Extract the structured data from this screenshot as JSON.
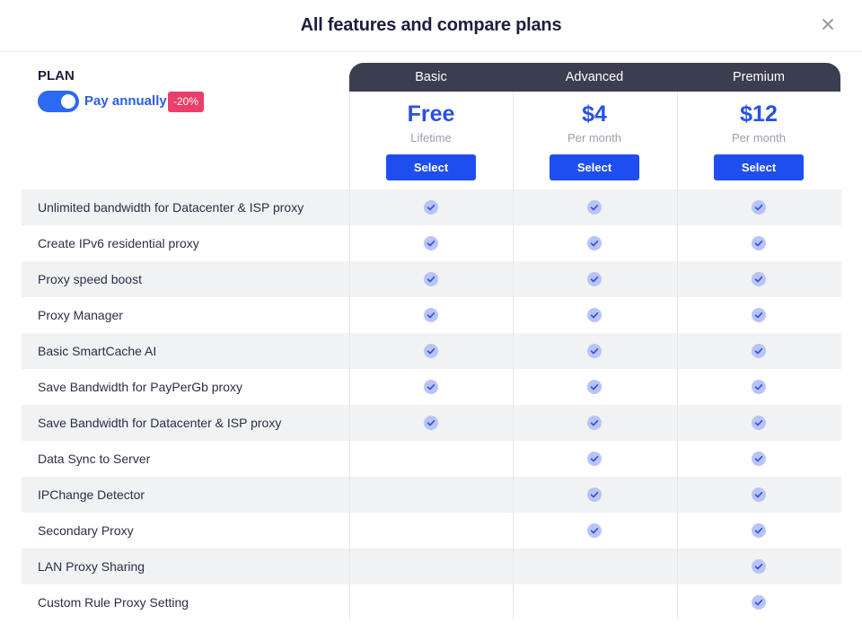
{
  "modal": {
    "title": "All features and compare plans"
  },
  "plan": {
    "label": "PLAN",
    "billing_toggle_label": "Pay annually",
    "billing_annual_on": true,
    "discount_badge": "-20%"
  },
  "plans": [
    {
      "name": "Basic",
      "price": "Free",
      "period": "Lifetime",
      "button": "Select"
    },
    {
      "name": "Advanced",
      "price": "$4",
      "period": "Per month",
      "button": "Select"
    },
    {
      "name": "Premium",
      "price": "$12",
      "period": "Per month",
      "button": "Select"
    }
  ],
  "features": [
    {
      "name": "Unlimited bandwidth for Datacenter & ISP proxy",
      "included": [
        true,
        true,
        true
      ]
    },
    {
      "name": "Create IPv6 residential proxy",
      "included": [
        true,
        true,
        true
      ]
    },
    {
      "name": "Proxy speed boost",
      "included": [
        true,
        true,
        true
      ]
    },
    {
      "name": "Proxy Manager",
      "included": [
        true,
        true,
        true
      ]
    },
    {
      "name": "Basic SmartCache AI",
      "included": [
        true,
        true,
        true
      ]
    },
    {
      "name": "Save Bandwidth for PayPerGb proxy",
      "included": [
        true,
        true,
        true
      ]
    },
    {
      "name": "Save Bandwidth for Datacenter & ISP proxy",
      "included": [
        true,
        true,
        true
      ]
    },
    {
      "name": "Data Sync to Server",
      "included": [
        false,
        true,
        true
      ]
    },
    {
      "name": "IPChange Detector",
      "included": [
        false,
        true,
        true
      ]
    },
    {
      "name": "Secondary Proxy",
      "included": [
        false,
        true,
        true
      ]
    },
    {
      "name": "LAN Proxy Sharing",
      "included": [
        false,
        false,
        true
      ]
    },
    {
      "name": "Custom Rule Proxy Setting",
      "included": [
        false,
        false,
        true
      ]
    }
  ],
  "colors": {
    "accent": "#2b6af2",
    "price": "#2850e8",
    "button": "#1f4ef0",
    "header_bar": "#3a3e50",
    "badge": "#ea3f6a",
    "check_circle": "#b9c4f6",
    "check_mark": "#3355e0",
    "row_shade": "#f1f2f4"
  }
}
